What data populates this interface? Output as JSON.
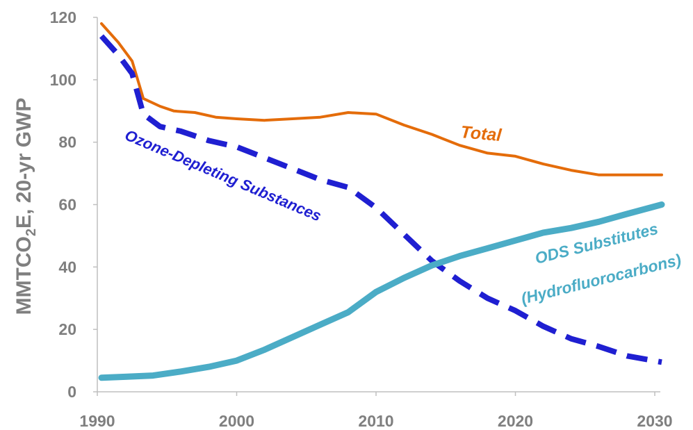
{
  "chart_data": {
    "type": "line",
    "title": "",
    "xlabel": "",
    "ylabel": {
      "prefix": "MMTCO",
      "subscript": "2",
      "suffix": "E, 20-yr GWP"
    },
    "xlim": [
      1990,
      2030
    ],
    "ylim": [
      0,
      120
    ],
    "x_ticks": [
      "1990",
      "2000",
      "2010",
      "2020",
      "2030"
    ],
    "y_ticks": [
      "0",
      "20",
      "40",
      "60",
      "80",
      "100",
      "120"
    ],
    "grid": false,
    "legend": "none",
    "series": [
      {
        "name": "Total",
        "color": "#e46c0a",
        "style": "solid",
        "x": [
          1990.3,
          1991.5,
          1992.5,
          1993.3,
          1994.5,
          1995.5,
          1997,
          1998.5,
          2000,
          2002,
          2004,
          2006,
          2008,
          2010,
          2012,
          2014,
          2016,
          2018,
          2020,
          2022,
          2024,
          2026,
          2028,
          2030.5
        ],
        "y": [
          118,
          112,
          106,
          94,
          91.5,
          90,
          89.5,
          88,
          87.5,
          87,
          87.5,
          88,
          89.5,
          89,
          85.5,
          82.5,
          79,
          76.5,
          75.5,
          73,
          71,
          69.5,
          69.5,
          69.5
        ]
      },
      {
        "name": "Ozone-Depleting Substances",
        "color": "#1f1fd1",
        "style": "dashed",
        "x": [
          1990.3,
          1991.5,
          1992.5,
          1993.3,
          1994.5,
          1996,
          1998,
          2000,
          2002,
          2004,
          2006,
          2008,
          2010,
          2012,
          2014,
          2016,
          2018,
          2020,
          2022,
          2024,
          2026,
          2028,
          2030.5
        ],
        "y": [
          114,
          108,
          102,
          89,
          85,
          83.5,
          80.5,
          78.5,
          75,
          71.5,
          68,
          65.5,
          59,
          50.5,
          42,
          35.5,
          30,
          26,
          21,
          17,
          14.5,
          11.5,
          9.5
        ]
      },
      {
        "name": "ODS Substitutes (Hydrofluorocarbons)",
        "color": "#4bacc6",
        "style": "solid",
        "x": [
          1990.3,
          1992,
          1994,
          1996,
          1998,
          2000,
          2002,
          2004,
          2006,
          2008,
          2010,
          2012,
          2014,
          2016,
          2018,
          2020,
          2022,
          2024,
          2026,
          2028,
          2030.5
        ],
        "y": [
          4.5,
          4.8,
          5.2,
          6.5,
          8,
          10,
          13.5,
          17.5,
          21.5,
          25.5,
          32,
          36.5,
          40.5,
          43.5,
          46,
          48.5,
          51,
          52.5,
          54.5,
          57,
          60
        ]
      }
    ],
    "annotations": [
      {
        "text": "Total",
        "series": "Total",
        "color": "#e46c0a"
      },
      {
        "text": "Ozone-Depleting Substances",
        "series": "Ozone-Depleting Substances",
        "color": "#1f1fd1"
      },
      {
        "text": "ODS Substitutes",
        "series": "ODS Substitutes (Hydrofluorocarbons)",
        "color": "#4bacc6"
      },
      {
        "text": "(Hydrofluorocarbons)",
        "series": "ODS Substitutes (Hydrofluorocarbons)",
        "color": "#4bacc6"
      }
    ]
  }
}
